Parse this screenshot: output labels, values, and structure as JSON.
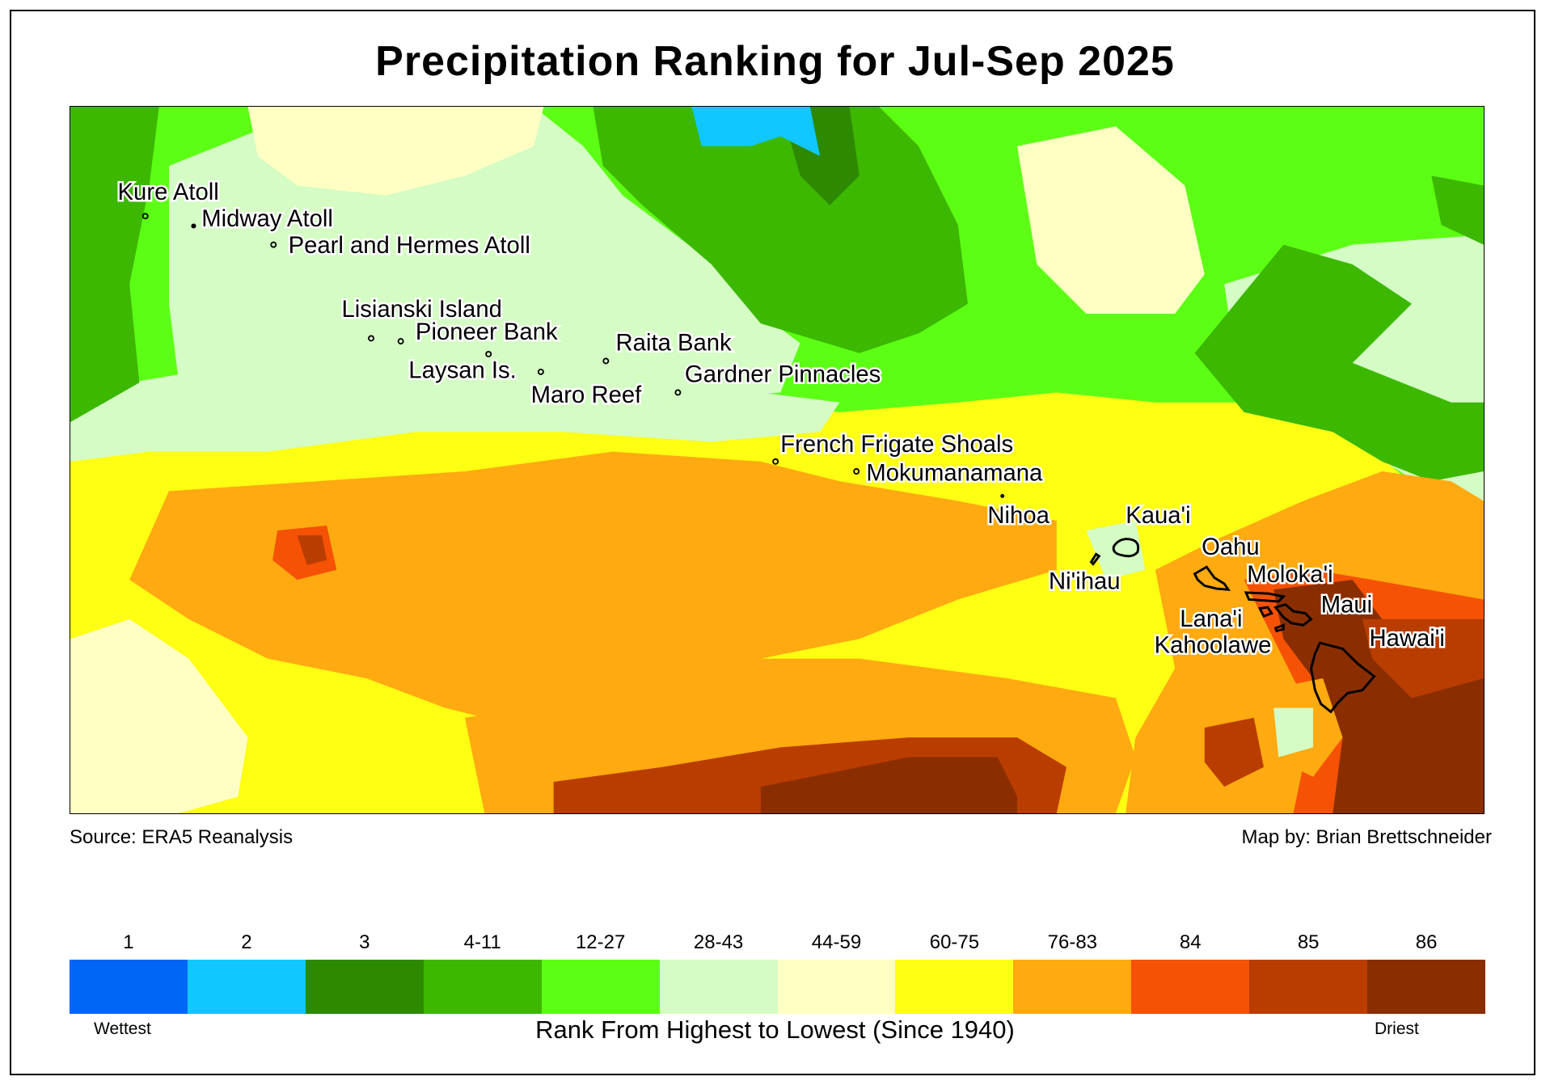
{
  "title": "Precipitation Ranking for Jul-Sep 2025",
  "source": "Source: ERA5 Reanalysis",
  "credit": "Map by: Brian Brettschneider",
  "map_labels": {
    "kure": "Kure Atoll",
    "midway": "Midway Atoll",
    "pearl": "Pearl and Hermes Atoll",
    "lisianski": "Lisianski Island",
    "pioneer": "Pioneer Bank",
    "laysan": "Laysan Is.",
    "raita": "Raita Bank",
    "maro": "Maro Reef",
    "gardner": "Gardner Pinnacles",
    "ffs": "French Frigate Shoals",
    "mokumanamana": "Mokumanamana",
    "nihoa": "Nihoa",
    "kauai": "Kaua'i",
    "niihau": "Ni'ihau",
    "oahu": "Oahu",
    "molokai": "Moloka'i",
    "maui": "Maui",
    "lanai": "Lana'i",
    "kahoolawe": "Kahoolawe",
    "hawaii": "Hawai'i"
  },
  "legend": {
    "items": [
      {
        "label": "1",
        "color": "#0066f5"
      },
      {
        "label": "2",
        "color": "#10c8ff"
      },
      {
        "label": "3",
        "color": "#2d8a00"
      },
      {
        "label": "4-11",
        "color": "#3cb800"
      },
      {
        "label": "12-27",
        "color": "#5cff14"
      },
      {
        "label": "28-43",
        "color": "#d4fcc4"
      },
      {
        "label": "44-59",
        "color": "#ffffc4"
      },
      {
        "label": "60-75",
        "color": "#ffff14"
      },
      {
        "label": "76-83",
        "color": "#ffaa10"
      },
      {
        "label": "84",
        "color": "#f55205"
      },
      {
        "label": "85",
        "color": "#ba3d00"
      },
      {
        "label": "86",
        "color": "#8a2e00"
      }
    ],
    "low_label": "Wettest",
    "high_label": "Driest",
    "axis_title": "Rank From Highest to Lowest (Since 1940)"
  }
}
